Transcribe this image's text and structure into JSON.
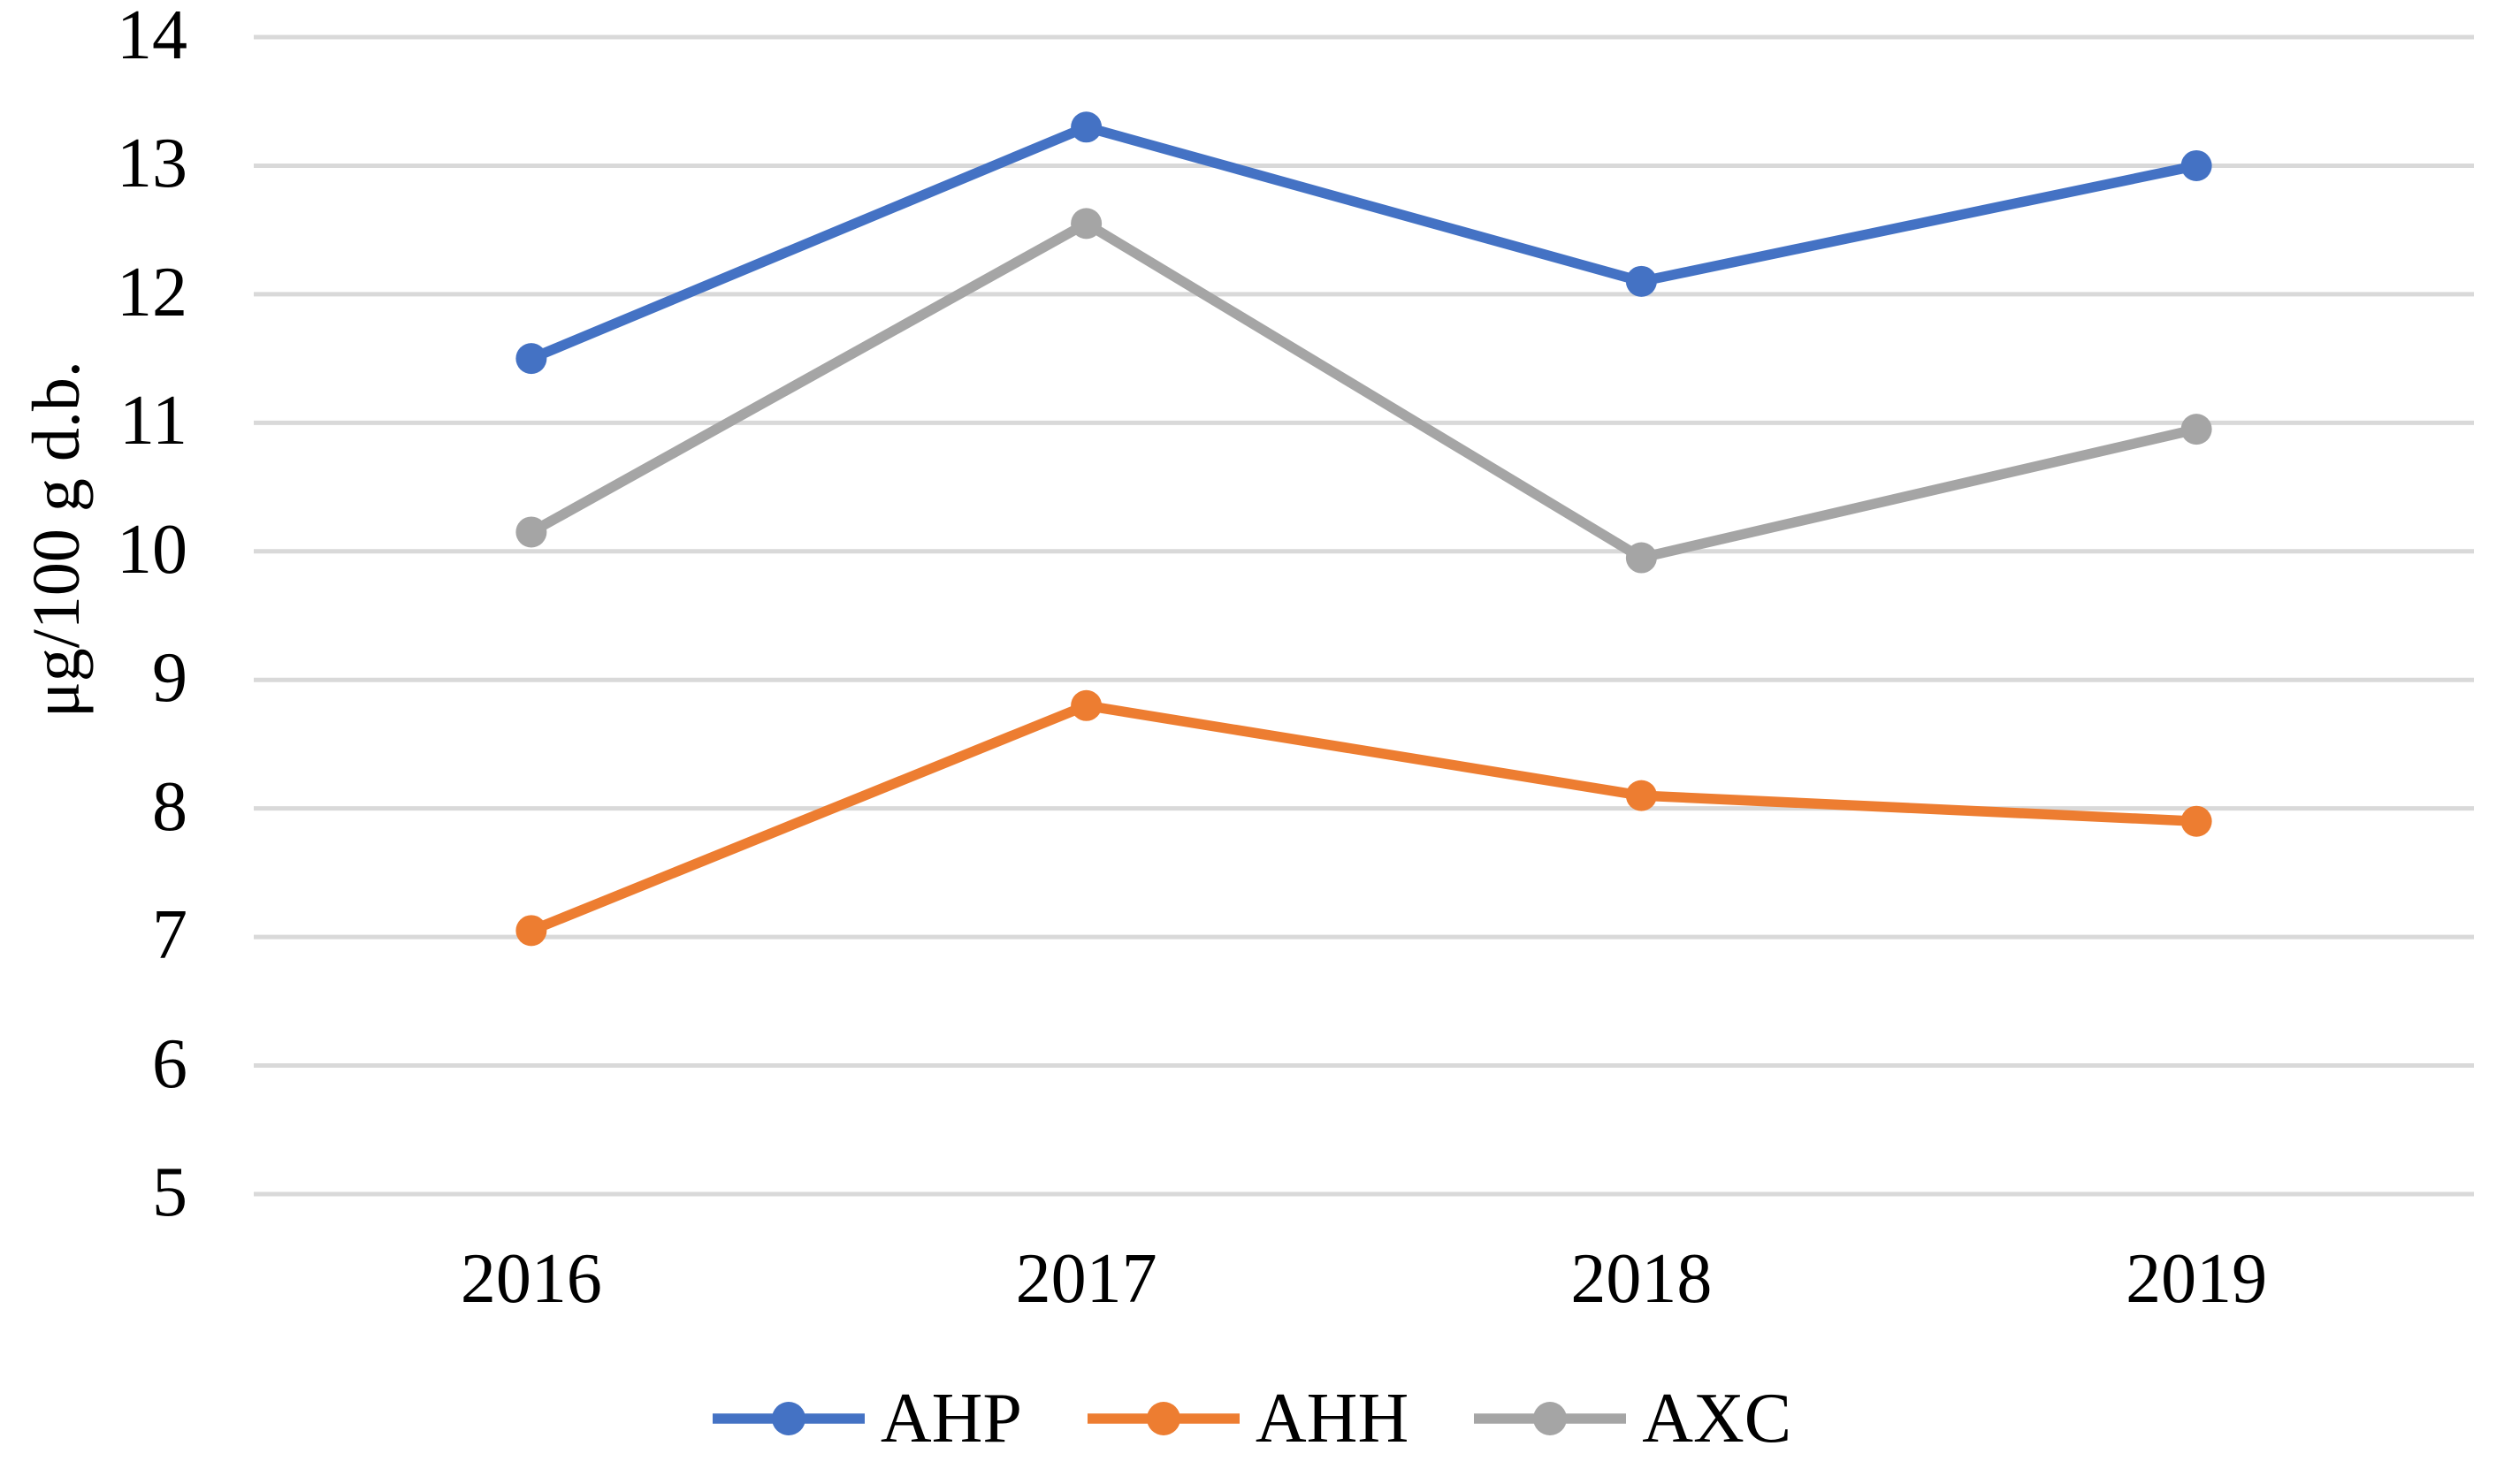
{
  "chart_data": {
    "type": "line",
    "categories": [
      "2016",
      "2017",
      "2018",
      "2019"
    ],
    "series": [
      {
        "name": "AHP",
        "color": "#4472C4",
        "values": [
          11.5,
          13.3,
          12.1,
          13.0
        ]
      },
      {
        "name": "AHH",
        "color": "#ED7D31",
        "values": [
          7.05,
          8.8,
          8.1,
          7.9
        ]
      },
      {
        "name": "AXC",
        "color": "#A5A5A5",
        "values": [
          10.15,
          12.55,
          9.95,
          10.95
        ]
      }
    ],
    "title": "",
    "xlabel": "",
    "ylabel": "μg/100 g d.b.",
    "ylim": [
      5,
      14
    ],
    "ytick_step": 1,
    "yticks": [
      "5",
      "6",
      "7",
      "8",
      "9",
      "10",
      "11",
      "12",
      "13",
      "14"
    ],
    "grid": "horizontal",
    "gridline_color": "#D9D9D9",
    "background_color": "#FFFFFF",
    "text_color": "#000000",
    "legend_position": "bottom",
    "marker": "circle"
  }
}
